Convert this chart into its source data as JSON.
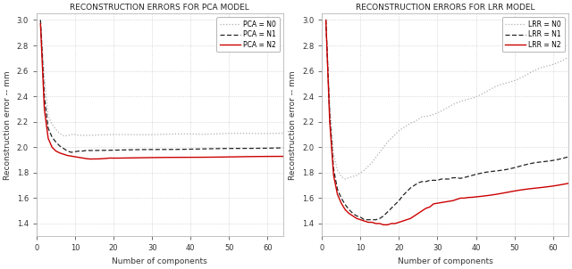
{
  "pca_title": "RECONSTRUCTION ERRORS FOR PCA MODEL",
  "lrr_title": "RECONSTRUCTION ERRORS FOR LRR MODEL",
  "xlabel": "Number of components",
  "ylabel": "Reconstruction error -- mm",
  "xlim": [
    0,
    64
  ],
  "ylim_pca": [
    1.3,
    3.05
  ],
  "ylim_lrr": [
    1.3,
    3.05
  ],
  "yticks": [
    1.4,
    1.6,
    1.8,
    2.0,
    2.2,
    2.4,
    2.6,
    2.8,
    3.0
  ],
  "xticks": [
    0,
    10,
    20,
    30,
    40,
    50,
    60
  ],
  "color_N0": "#b0b0b0",
  "color_N1": "#222222",
  "color_N2": "#cc0000",
  "legend_pca": [
    "PCA = N0",
    "PCA = N1",
    "PCA = N2"
  ],
  "legend_lrr": [
    "LRR = N0",
    "LRR = N1",
    "LRR = N2"
  ],
  "figsize": [
    6.4,
    3.02
  ],
  "dpi": 100
}
